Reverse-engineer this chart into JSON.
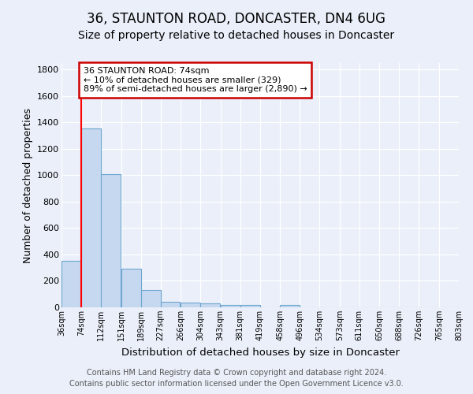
{
  "title1": "36, STAUNTON ROAD, DONCASTER, DN4 6UG",
  "title2": "Size of property relative to detached houses in Doncaster",
  "xlabel": "Distribution of detached houses by size in Doncaster",
  "ylabel": "Number of detached properties",
  "bins": [
    36,
    74,
    112,
    151,
    189,
    227,
    266,
    304,
    343,
    381,
    419,
    458,
    496,
    534,
    573,
    611,
    650,
    688,
    726,
    765,
    803
  ],
  "heights": [
    350,
    1355,
    1010,
    295,
    130,
    40,
    35,
    30,
    20,
    15,
    0,
    20,
    0,
    0,
    0,
    0,
    0,
    0,
    0,
    0
  ],
  "bar_color": "#c5d8f0",
  "bar_edge_color": "#6ea6d0",
  "bar_linewidth": 0.8,
  "redline_x": 74,
  "ylim": [
    0,
    1850
  ],
  "yticks": [
    0,
    200,
    400,
    600,
    800,
    1000,
    1200,
    1400,
    1600,
    1800
  ],
  "annotation_text": "36 STAUNTON ROAD: 74sqm\n← 10% of detached houses are smaller (329)\n89% of semi-detached houses are larger (2,890) →",
  "annotation_box_color": "#ffffff",
  "annotation_border_color": "#cc0000",
  "footnote1": "Contains HM Land Registry data © Crown copyright and database right 2024.",
  "footnote2": "Contains public sector information licensed under the Open Government Licence v3.0.",
  "bg_color": "#eaeff9",
  "plot_bg_color": "#eaeff9",
  "title1_fontsize": 12,
  "title2_fontsize": 10,
  "xlabel_fontsize": 9.5,
  "ylabel_fontsize": 9,
  "tick_fontsize": 7,
  "footnote_fontsize": 7,
  "annotation_fontsize": 8
}
